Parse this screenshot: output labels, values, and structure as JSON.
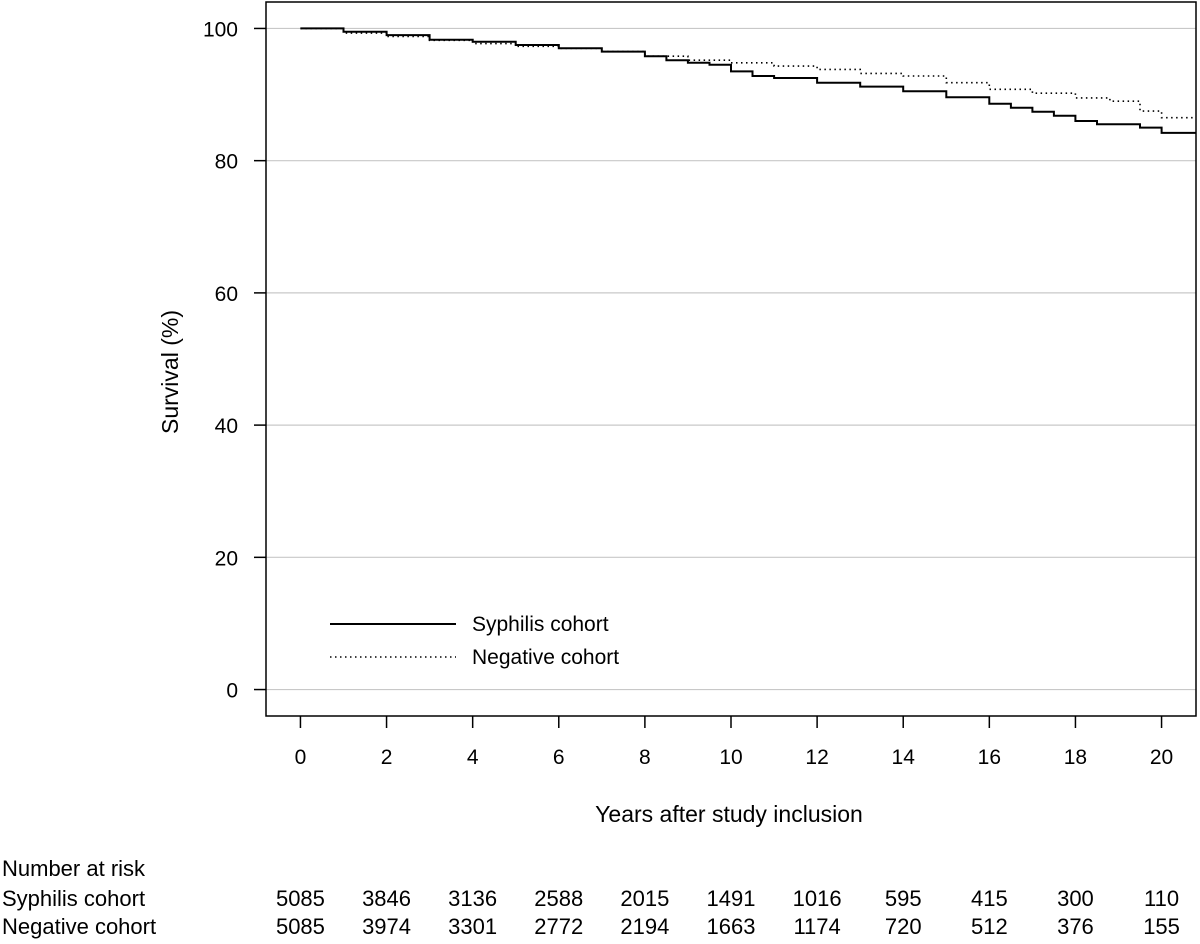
{
  "chart_data": {
    "type": "line",
    "title": "",
    "xlabel": "Years after study inclusion",
    "ylabel": "Survival (%)",
    "xlim": [
      -0.8,
      20.8
    ],
    "ylim": [
      -4,
      104
    ],
    "x_ticks": [
      0,
      2,
      4,
      6,
      8,
      10,
      12,
      14,
      16,
      18,
      20
    ],
    "y_ticks": [
      0,
      20,
      40,
      60,
      80,
      100
    ],
    "grid": "horizontal",
    "legend_position": "bottom-left",
    "series": [
      {
        "name": "Syphilis cohort",
        "style": "solid",
        "x": [
          0,
          1,
          2,
          3,
          4,
          5,
          6,
          7,
          8,
          8.5,
          9,
          9.5,
          10,
          10.5,
          11,
          12,
          13,
          14,
          15,
          16,
          16.5,
          17,
          17.5,
          18,
          18.5,
          19,
          19.5,
          20,
          20.8
        ],
        "y": [
          100,
          99.5,
          99,
          98.3,
          98,
          97.5,
          97,
          96.5,
          95.8,
          95.2,
          94.8,
          94.5,
          93.5,
          92.8,
          92.5,
          91.8,
          91.2,
          90.5,
          89.6,
          88.6,
          88,
          87.4,
          86.8,
          86,
          85.5,
          85.5,
          85,
          84.2,
          84.2
        ]
      },
      {
        "name": "Negative cohort",
        "style": "dotted",
        "x": [
          0,
          1,
          2,
          3,
          4,
          5,
          6,
          7,
          8,
          9,
          10,
          11,
          12,
          13,
          14,
          15,
          16,
          17,
          18,
          18.8,
          19.5,
          20,
          20.8
        ],
        "y": [
          100,
          99.3,
          98.8,
          98.2,
          97.7,
          97.3,
          97,
          96.5,
          95.8,
          95.2,
          94.8,
          94.3,
          93.8,
          93.2,
          92.8,
          91.8,
          90.8,
          90.2,
          89.5,
          89,
          87.5,
          86.5,
          86.5
        ]
      }
    ],
    "risk_table": {
      "title": "Number at risk",
      "years": [
        0,
        2,
        4,
        6,
        8,
        10,
        12,
        14,
        16,
        18,
        20
      ],
      "rows": [
        {
          "label": "Syphilis cohort",
          "values": [
            "5085",
            "3846",
            "3136",
            "2588",
            "2015",
            "1491",
            "1016",
            "595",
            "415",
            "300",
            "110"
          ]
        },
        {
          "label": "Negative cohort",
          "values": [
            "5085",
            "3974",
            "3301",
            "2772",
            "2194",
            "1663",
            "1174",
            "720",
            "512",
            "376",
            "155"
          ]
        }
      ]
    }
  }
}
